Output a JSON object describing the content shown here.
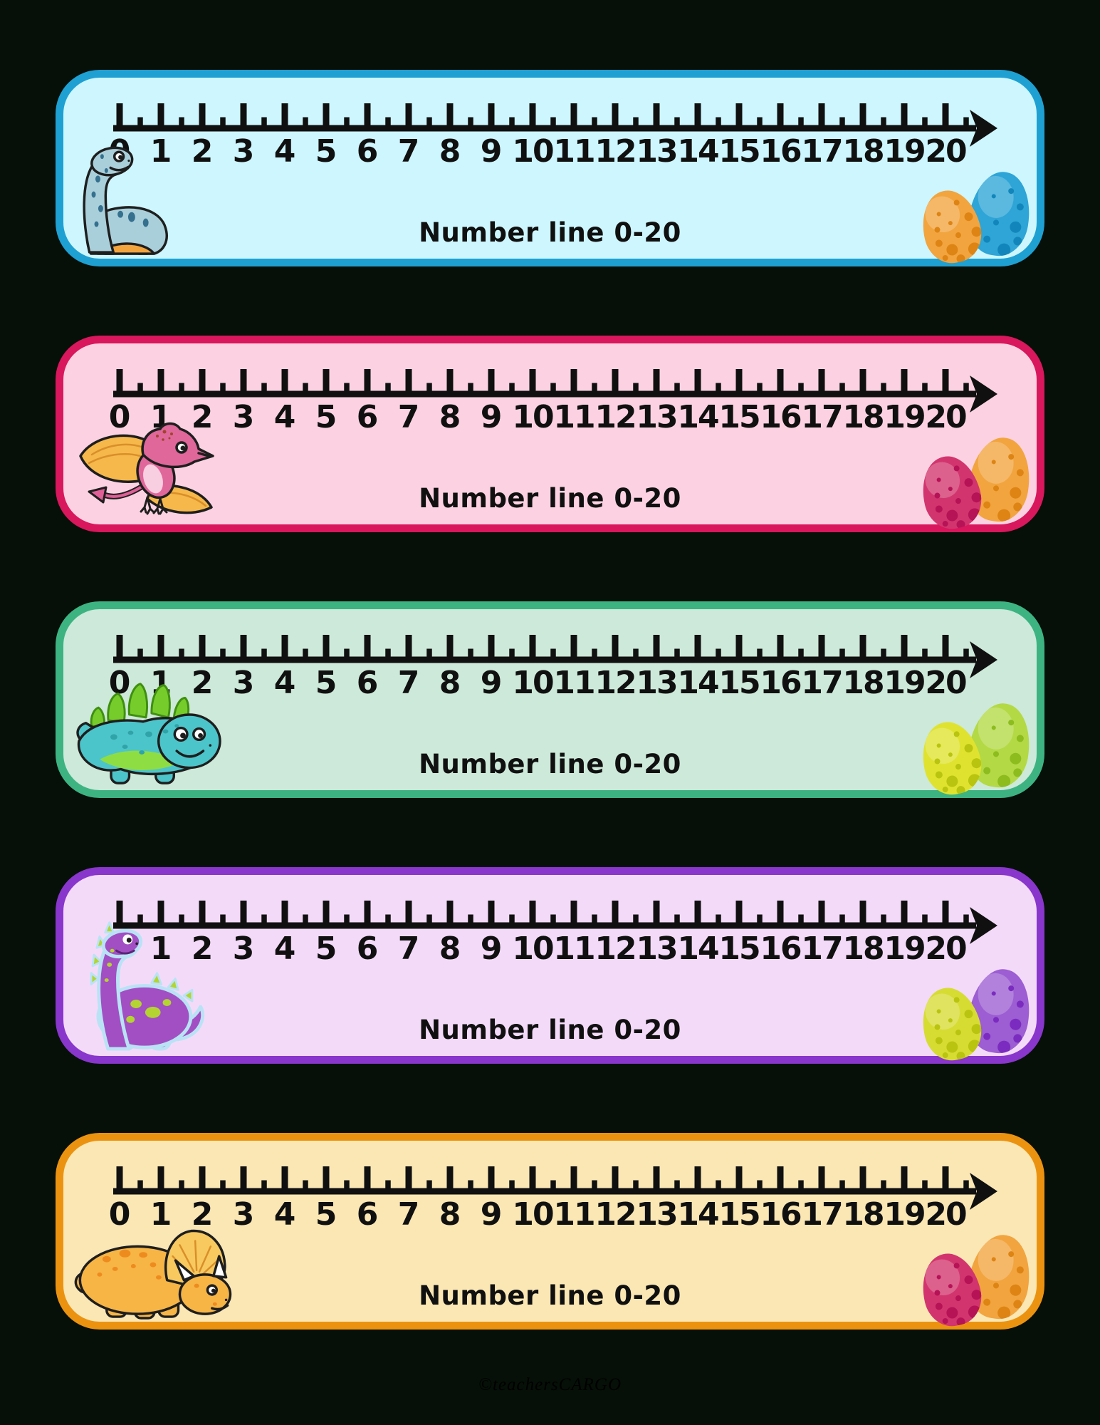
{
  "page": {
    "background": "#061008",
    "watermark": "©teachersCARGO"
  },
  "number_line": {
    "labels": [
      "0",
      "1",
      "2",
      "3",
      "4",
      "5",
      "6",
      "7",
      "8",
      "9",
      "10",
      "11",
      "12",
      "13",
      "14",
      "15",
      "16",
      "17",
      "18",
      "19",
      "20"
    ]
  },
  "strips": [
    {
      "caption": "Number line 0-20",
      "border_color": "#1fa0d2",
      "fill_color": "#cdf6fe",
      "dino_icon": "blue-sauropod",
      "eggs": {
        "front": {
          "color": "#f2a43e",
          "spot_color": "#dd8414"
        },
        "back": {
          "color": "#2ea5d6",
          "spot_color": "#1286ba"
        }
      }
    },
    {
      "caption": "Number line 0-20",
      "border_color": "#d8175c",
      "fill_color": "#fcd2e2",
      "dino_icon": "pink-pterodactyl",
      "eggs": {
        "front": {
          "color": "#d2356e",
          "spot_color": "#b51356"
        },
        "back": {
          "color": "#f2a43e",
          "spot_color": "#dd8414"
        }
      }
    },
    {
      "caption": "Number line 0-20",
      "border_color": "#3db382",
      "fill_color": "#cde9d9",
      "dino_icon": "teal-stegosaurus",
      "eggs": {
        "front": {
          "color": "#dfe32f",
          "spot_color": "#b9c410"
        },
        "back": {
          "color": "#b3d944",
          "spot_color": "#8cbc1e"
        }
      }
    },
    {
      "caption": "Number line 0-20",
      "border_color": "#8836cb",
      "fill_color": "#f4daf9",
      "dino_icon": "purple-sauropod",
      "eggs": {
        "front": {
          "color": "#d7dc33",
          "spot_color": "#b9c410"
        },
        "back": {
          "color": "#9c5ed2",
          "spot_color": "#7b2bbf"
        }
      }
    },
    {
      "caption": "Number line 0-20",
      "border_color": "#eb9310",
      "fill_color": "#fbe7b4",
      "dino_icon": "orange-triceratops",
      "eggs": {
        "front": {
          "color": "#d2356e",
          "spot_color": "#b51356"
        },
        "back": {
          "color": "#f2a43e",
          "spot_color": "#dd8414"
        }
      }
    }
  ]
}
